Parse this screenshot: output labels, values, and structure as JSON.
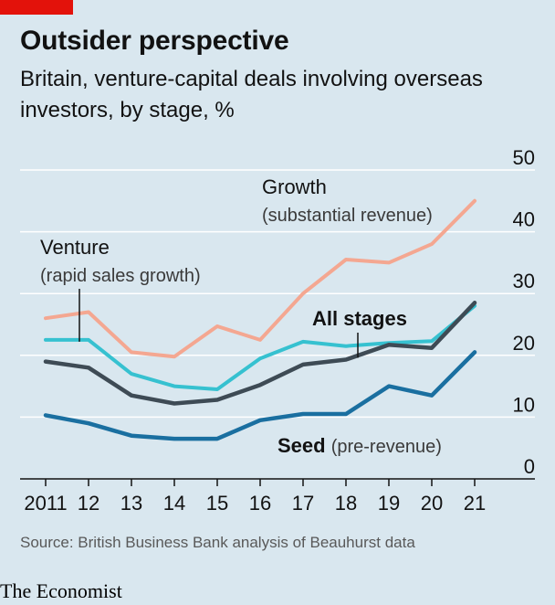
{
  "header": {
    "title": "Outsider perspective",
    "subtitle": "Britain, venture-capital deals involving overseas investors, by stage, %"
  },
  "footer": {
    "source": "Source: British Business Bank analysis of Beauhurst data",
    "brand": "The Economist"
  },
  "colors": {
    "background": "#d9e7ef",
    "brand_red": "#e3120b",
    "growth": "#f4a791",
    "venture": "#36c1d0",
    "all_stages": "#3e4b55",
    "seed": "#1a6fa0",
    "grid": "#ffffff"
  },
  "chart_data": {
    "type": "line",
    "x": [
      2011,
      2012,
      2013,
      2014,
      2015,
      2016,
      2017,
      2018,
      2019,
      2020,
      2021
    ],
    "x_tick_labels": [
      "2011",
      "12",
      "13",
      "14",
      "15",
      "16",
      "17",
      "18",
      "19",
      "20",
      "21"
    ],
    "y_ticks": [
      0,
      10,
      20,
      30,
      40,
      50
    ],
    "ylim": [
      0,
      50
    ],
    "y_axis_side": "right",
    "grid": true,
    "series": [
      {
        "key": "growth",
        "name": "Growth",
        "name_detail": "(substantial revenue)",
        "values": [
          26.0,
          27.0,
          20.5,
          19.8,
          24.7,
          22.5,
          30.0,
          35.5,
          35.0,
          38.0,
          45.0
        ]
      },
      {
        "key": "venture",
        "name": "Venture",
        "name_detail": "(rapid sales growth)",
        "values": [
          22.5,
          22.5,
          17.0,
          15.0,
          14.5,
          19.5,
          22.2,
          21.5,
          22.0,
          22.3,
          28.0
        ]
      },
      {
        "key": "all_stages",
        "name": "All stages",
        "name_detail": "",
        "values": [
          19.0,
          18.0,
          13.5,
          12.2,
          12.8,
          15.2,
          18.5,
          19.3,
          21.7,
          21.2,
          28.5
        ]
      },
      {
        "key": "seed",
        "name": "Seed",
        "name_detail": "(pre-revenue)",
        "values": [
          10.3,
          9.0,
          7.0,
          6.5,
          6.5,
          9.5,
          10.5,
          10.5,
          15.0,
          13.5,
          20.5
        ]
      }
    ]
  }
}
